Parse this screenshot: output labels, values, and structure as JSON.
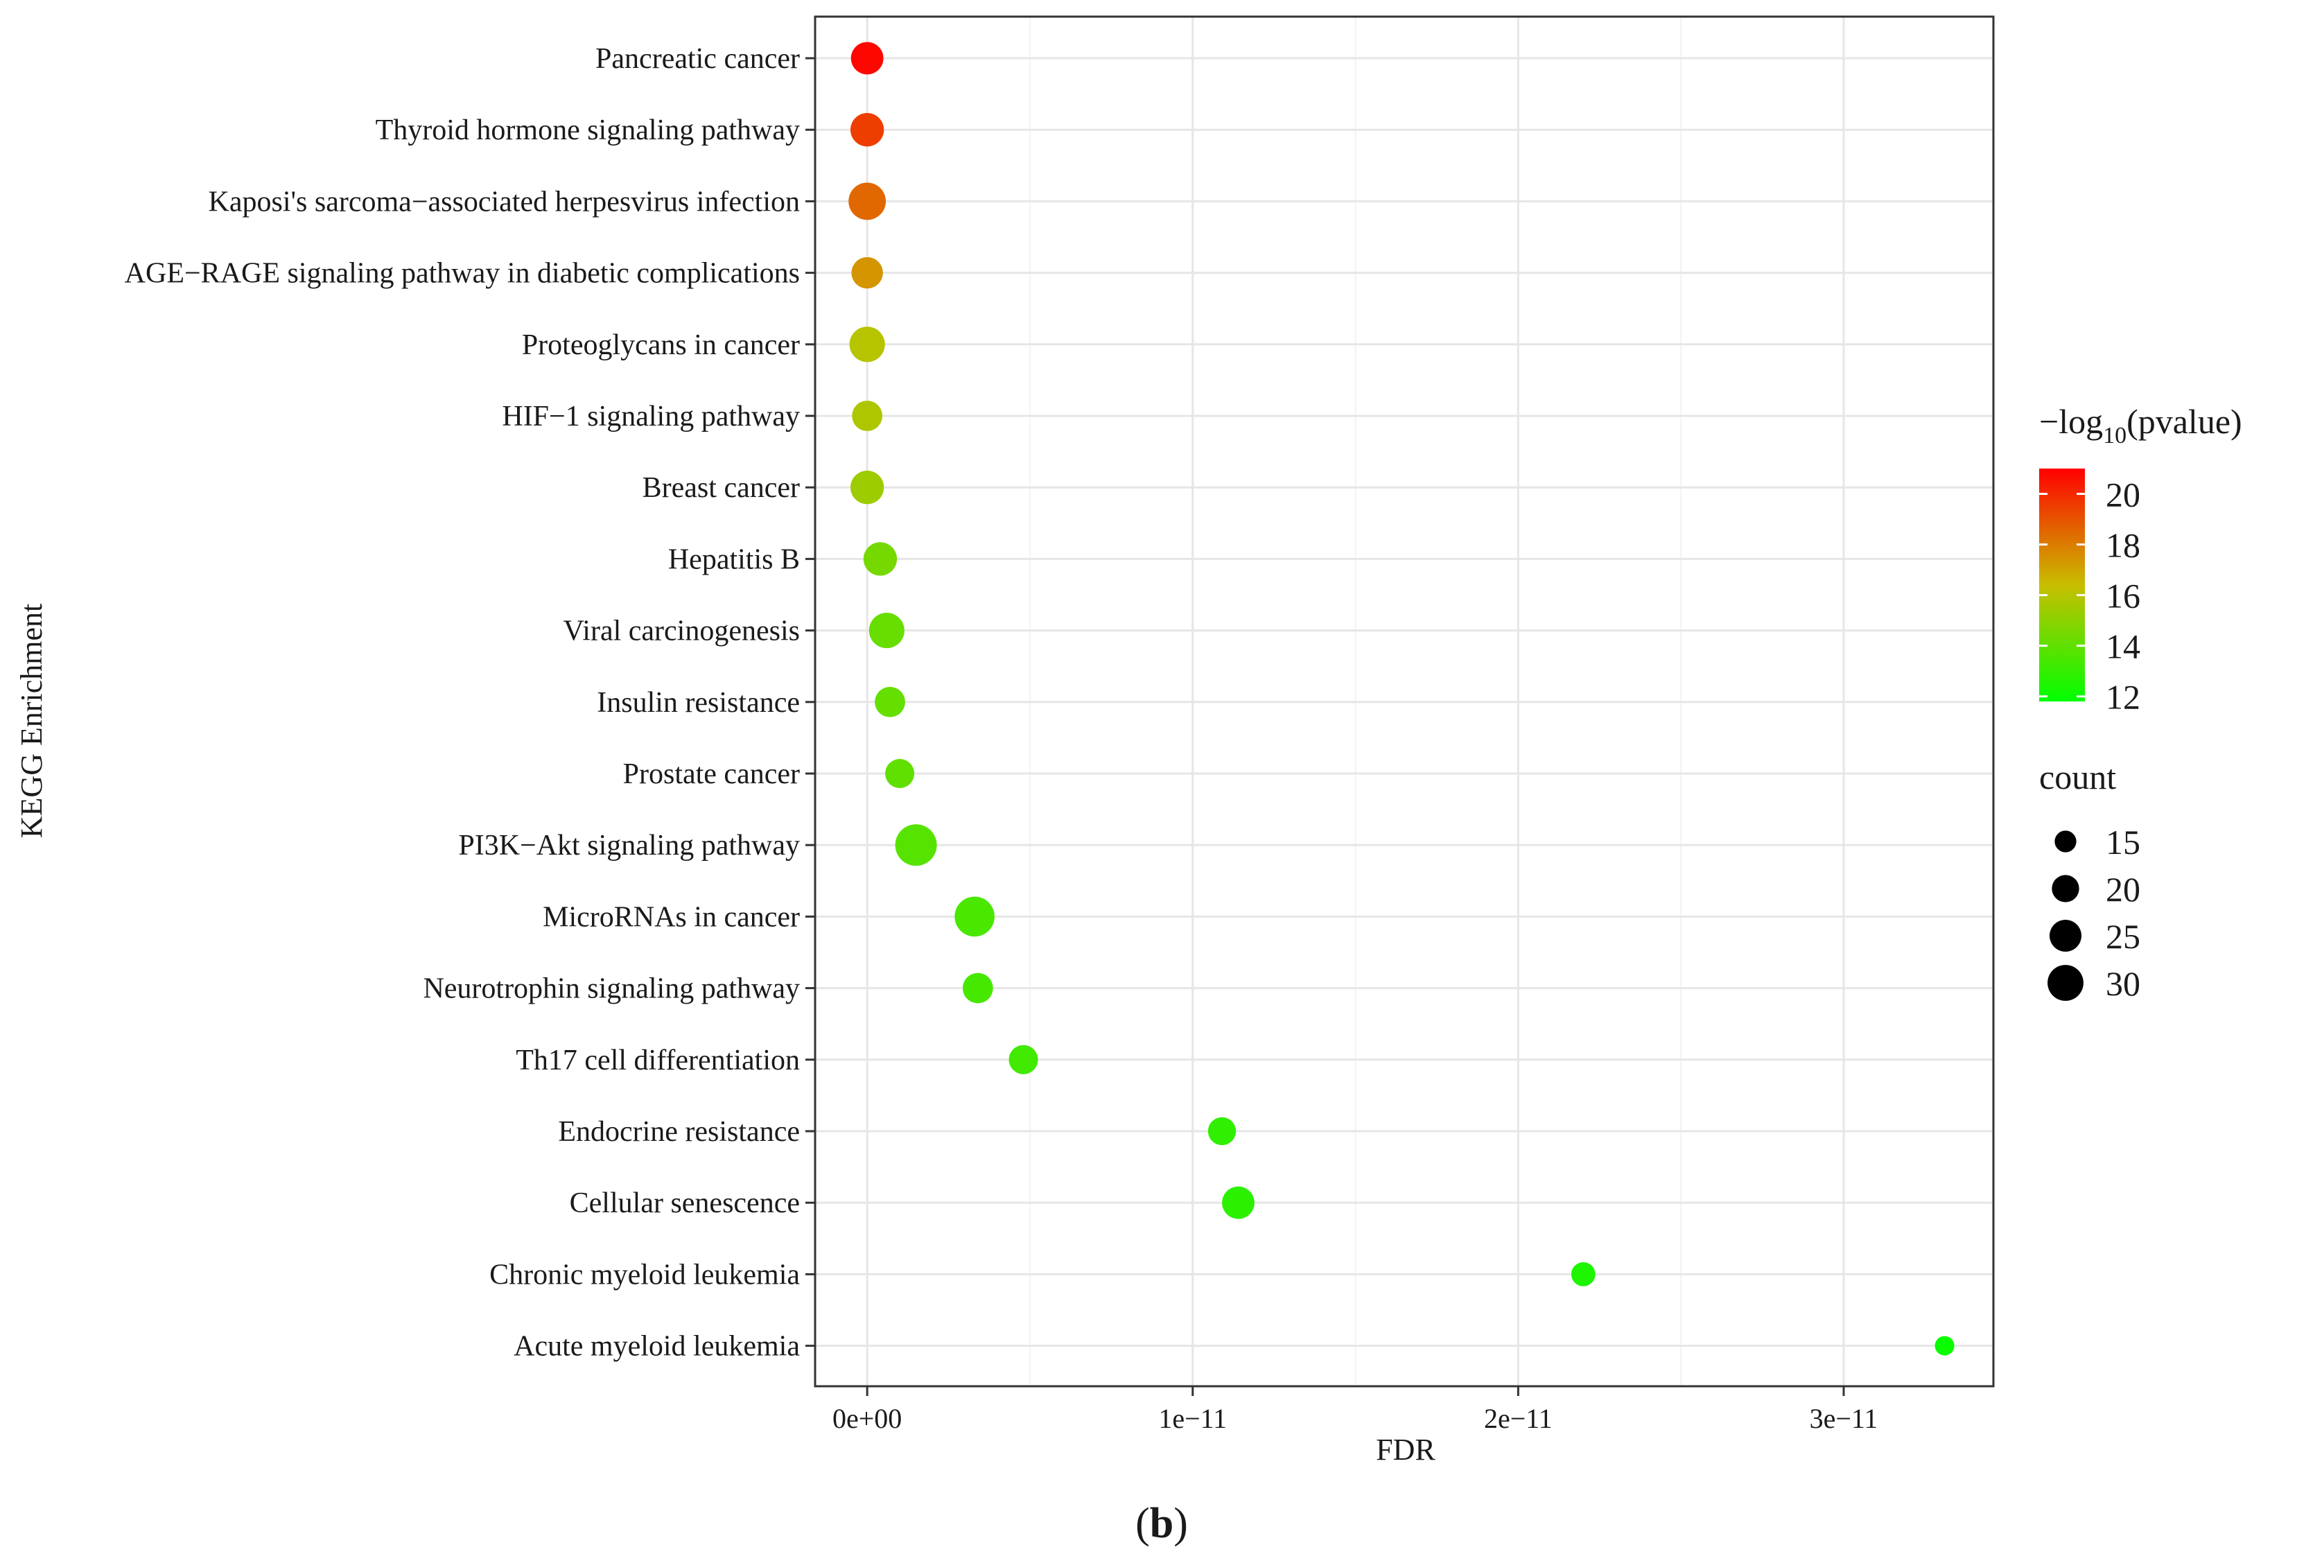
{
  "panel_label": "(b)",
  "panel_label_parts": {
    "open": "(",
    "letter": "b",
    "close": ")"
  },
  "chart_data": {
    "type": "scatter",
    "title": "",
    "xlabel": "FDR",
    "ylabel": "KEGG Enrichment",
    "xlim": [
      -1.6e-12,
      3.46e-11
    ],
    "x_ticks": [
      {
        "value": 0,
        "label": "0e+00"
      },
      {
        "value": 1e-11,
        "label": "1e−11"
      },
      {
        "value": 2e-11,
        "label": "2e−11"
      },
      {
        "value": 3e-11,
        "label": "3e−11"
      }
    ],
    "grid": true,
    "categories": [
      "Pancreatic cancer",
      "Thyroid hormone signaling pathway",
      "Kaposi's sarcoma−associated herpesvirus infection",
      "AGE−RAGE signaling pathway in diabetic complications",
      "Proteoglycans in cancer",
      "HIF−1 signaling pathway",
      "Breast cancer",
      "Hepatitis B",
      "Viral carcinogenesis",
      "Insulin resistance",
      "Prostate cancer",
      "PI3K−Akt signaling pathway",
      "MicroRNAs in cancer",
      "Neurotrophin signaling pathway",
      "Th17 cell differentiation",
      "Endocrine resistance",
      "Cellular senescence",
      "Chronic myeloid leukemia",
      "Acute myeloid leukemia"
    ],
    "points": [
      {
        "term": "Pancreatic cancer",
        "fdr": 0.0,
        "neglog10p": 20.8,
        "count": 22
      },
      {
        "term": "Thyroid hormone signaling pathway",
        "fdr": 0.0,
        "neglog10p": 19.5,
        "count": 23
      },
      {
        "term": "Kaposi's sarcoma−associated herpesvirus infection",
        "fdr": 0.0,
        "neglog10p": 18.5,
        "count": 27
      },
      {
        "term": "AGE−RAGE signaling pathway in diabetic complications",
        "fdr": 0.0,
        "neglog10p": 17.4,
        "count": 21
      },
      {
        "term": "Proteoglycans in cancer",
        "fdr": 0.0,
        "neglog10p": 16.0,
        "count": 25
      },
      {
        "term": "HIF−1 signaling pathway",
        "fdr": 0.0,
        "neglog10p": 15.8,
        "count": 20
      },
      {
        "term": "Breast cancer",
        "fdr": 0.0,
        "neglog10p": 15.4,
        "count": 23
      },
      {
        "term": "Hepatitis B",
        "fdr": 4e-13,
        "neglog10p": 14.5,
        "count": 23
      },
      {
        "term": "Viral carcinogenesis",
        "fdr": 6e-13,
        "neglog10p": 14.2,
        "count": 25
      },
      {
        "term": "Insulin resistance",
        "fdr": 7e-13,
        "neglog10p": 14.1,
        "count": 20
      },
      {
        "term": "Prostate cancer",
        "fdr": 1e-12,
        "neglog10p": 14.0,
        "count": 19
      },
      {
        "term": "PI3K−Akt signaling pathway",
        "fdr": 1.5e-12,
        "neglog10p": 13.8,
        "count": 32
      },
      {
        "term": "MicroRNAs in cancer",
        "fdr": 3.3e-12,
        "neglog10p": 13.5,
        "count": 30
      },
      {
        "term": "Neurotrophin signaling pathway",
        "fdr": 3.4e-12,
        "neglog10p": 13.4,
        "count": 20
      },
      {
        "term": "Th17 cell differentiation",
        "fdr": 4.8e-12,
        "neglog10p": 13.3,
        "count": 19
      },
      {
        "term": "Endocrine resistance",
        "fdr": 1.09e-11,
        "neglog10p": 12.9,
        "count": 18
      },
      {
        "term": "Cellular senescence",
        "fdr": 1.14e-11,
        "neglog10p": 12.8,
        "count": 22
      },
      {
        "term": "Chronic myeloid leukemia",
        "fdr": 2.2e-11,
        "neglog10p": 12.5,
        "count": 15
      },
      {
        "term": "Acute myeloid leukemia",
        "fdr": 3.31e-11,
        "neglog10p": 12.0,
        "count": 12
      }
    ],
    "color_scale": {
      "title_prefix": "−log",
      "title_subscript": "10",
      "title_suffix": "(pvalue)",
      "min": 11.8,
      "max": 21.0,
      "low_color": "#00ff00",
      "high_color": "#ff0000",
      "ticks": [
        {
          "value": 20,
          "label": "20"
        },
        {
          "value": 18,
          "label": "18"
        },
        {
          "value": 16,
          "label": "16"
        },
        {
          "value": 14,
          "label": "14"
        },
        {
          "value": 12,
          "label": "12"
        }
      ]
    },
    "size_scale": {
      "title": "count",
      "domain": [
        12,
        32
      ],
      "entries": [
        {
          "value": 15,
          "label": "15"
        },
        {
          "value": 20,
          "label": "20"
        },
        {
          "value": 25,
          "label": "25"
        },
        {
          "value": 30,
          "label": "30"
        }
      ]
    },
    "legend_position": "right",
    "colors": {
      "background": "#ffffff",
      "panel_border": "#333333",
      "grid_major": "#e6e6e6",
      "grid_minor": "#f3f3f3",
      "text": "#1a1a1a",
      "legend_dot": "#000000"
    }
  }
}
